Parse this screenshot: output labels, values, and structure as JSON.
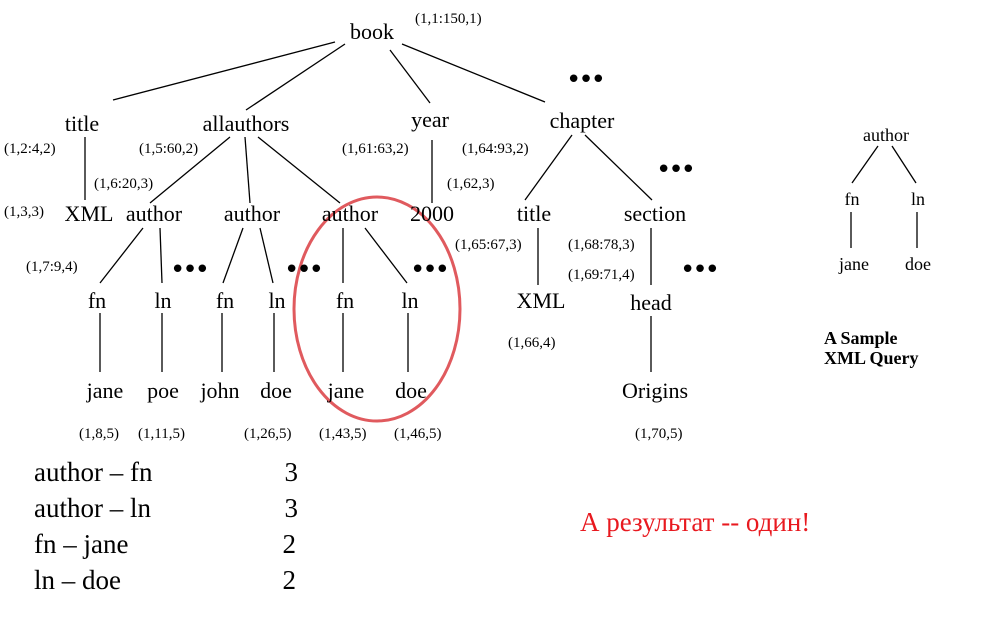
{
  "colors": {
    "ink": "#000000",
    "highlight": "#e05a5e",
    "result": "#e8191f"
  },
  "tree": {
    "book": "book",
    "book_label": "(1,1:150,1)",
    "title": "title",
    "title_label": "(1,2:4,2)",
    "xml1": "XML",
    "xml1_label": "(1,3,3)",
    "allauthors": "allauthors",
    "allauthors_label": "(1,5:60,2)",
    "year": "year",
    "year_label": "(1,61:63,2)",
    "y2000": "2000",
    "y2000_label": "(1,62,3)",
    "chapter": "chapter",
    "chapter_label": "(1,64:93,2)",
    "author1": "author",
    "author1_label": "(1,6:20,3)",
    "author2": "author",
    "author3": "author",
    "fn1": "fn",
    "fn1_label": "(1,7:9,4)",
    "ln1": "ln",
    "fn2": "fn",
    "ln2": "ln",
    "fn3": "fn",
    "ln3": "ln",
    "jane1": "jane",
    "jane1_label": "(1,8,5)",
    "poe": "poe",
    "poe_label": "(1,11,5)",
    "john": "john",
    "doe1": "doe",
    "doe1_label": "(1,26,5)",
    "jane2": "jane",
    "jane2_label": "(1,43,5)",
    "doe2": "doe",
    "doe2_label": "(1,46,5)",
    "ch_title": "title",
    "ch_title_label": "(1,65:67,3)",
    "xml2": "XML",
    "xml2_label": "(1,66,4)",
    "section": "section",
    "section_label": "(1,68:78,3)",
    "head": "head",
    "head_label": "(1,69:71,4)",
    "origins": "Origins",
    "origins_label": "(1,70,5)",
    "ellipsis": "•••"
  },
  "query": {
    "author": "author",
    "fn": "fn",
    "ln": "ln",
    "jane": "jane",
    "doe": "doe",
    "caption_line1": "A Sample",
    "caption_line2": "XML Query"
  },
  "stats": [
    {
      "pair": "author – fn",
      "count": "3"
    },
    {
      "pair": "author – ln",
      "count": "3"
    },
    {
      "pair": "fn – jane",
      "count": "2"
    },
    {
      "pair": "ln – doe",
      "count": "2"
    }
  ],
  "result": "А результат -- один!"
}
